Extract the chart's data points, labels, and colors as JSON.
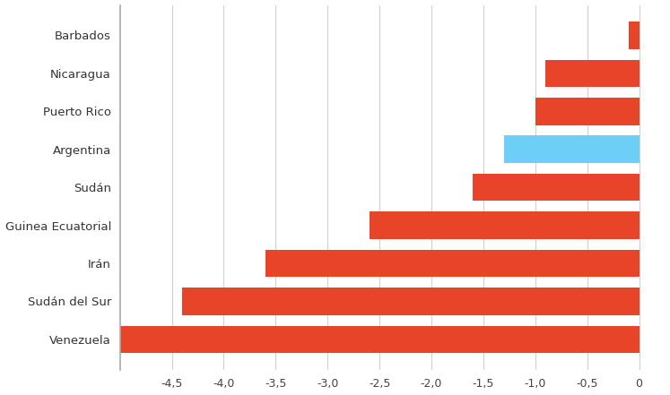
{
  "categories": [
    "Venezuela",
    "Sudán del Sur",
    "Irán",
    "Guinea Ecuatorial",
    "Sudán",
    "Argentina",
    "Puerto Rico",
    "Nicaragua",
    "Barbados"
  ],
  "values": [
    -5.0,
    -4.4,
    -3.6,
    -2.6,
    -1.6,
    -1.3,
    -1.0,
    -0.9,
    -0.1
  ],
  "bar_colors": [
    "#e8442a",
    "#e8442a",
    "#e8442a",
    "#e8442a",
    "#e8442a",
    "#6ecff6",
    "#e8442a",
    "#e8442a",
    "#e8442a"
  ],
  "xlim": [
    -5.0,
    0.25
  ],
  "xticks": [
    -4.5,
    -4.0,
    -3.5,
    -3.0,
    -2.5,
    -2.0,
    -1.5,
    -1.0,
    -0.5,
    0
  ],
  "xtick_labels": [
    "-4,5",
    "-4,0",
    "-3,5",
    "-3,0",
    "-2,5",
    "-2,0",
    "-1,5",
    "-1,0",
    "-0,5",
    "0"
  ],
  "background_color": "#ffffff",
  "bar_height": 0.72,
  "grid_color": "#d0d0d0",
  "tick_fontsize": 9,
  "label_fontsize": 9.5
}
